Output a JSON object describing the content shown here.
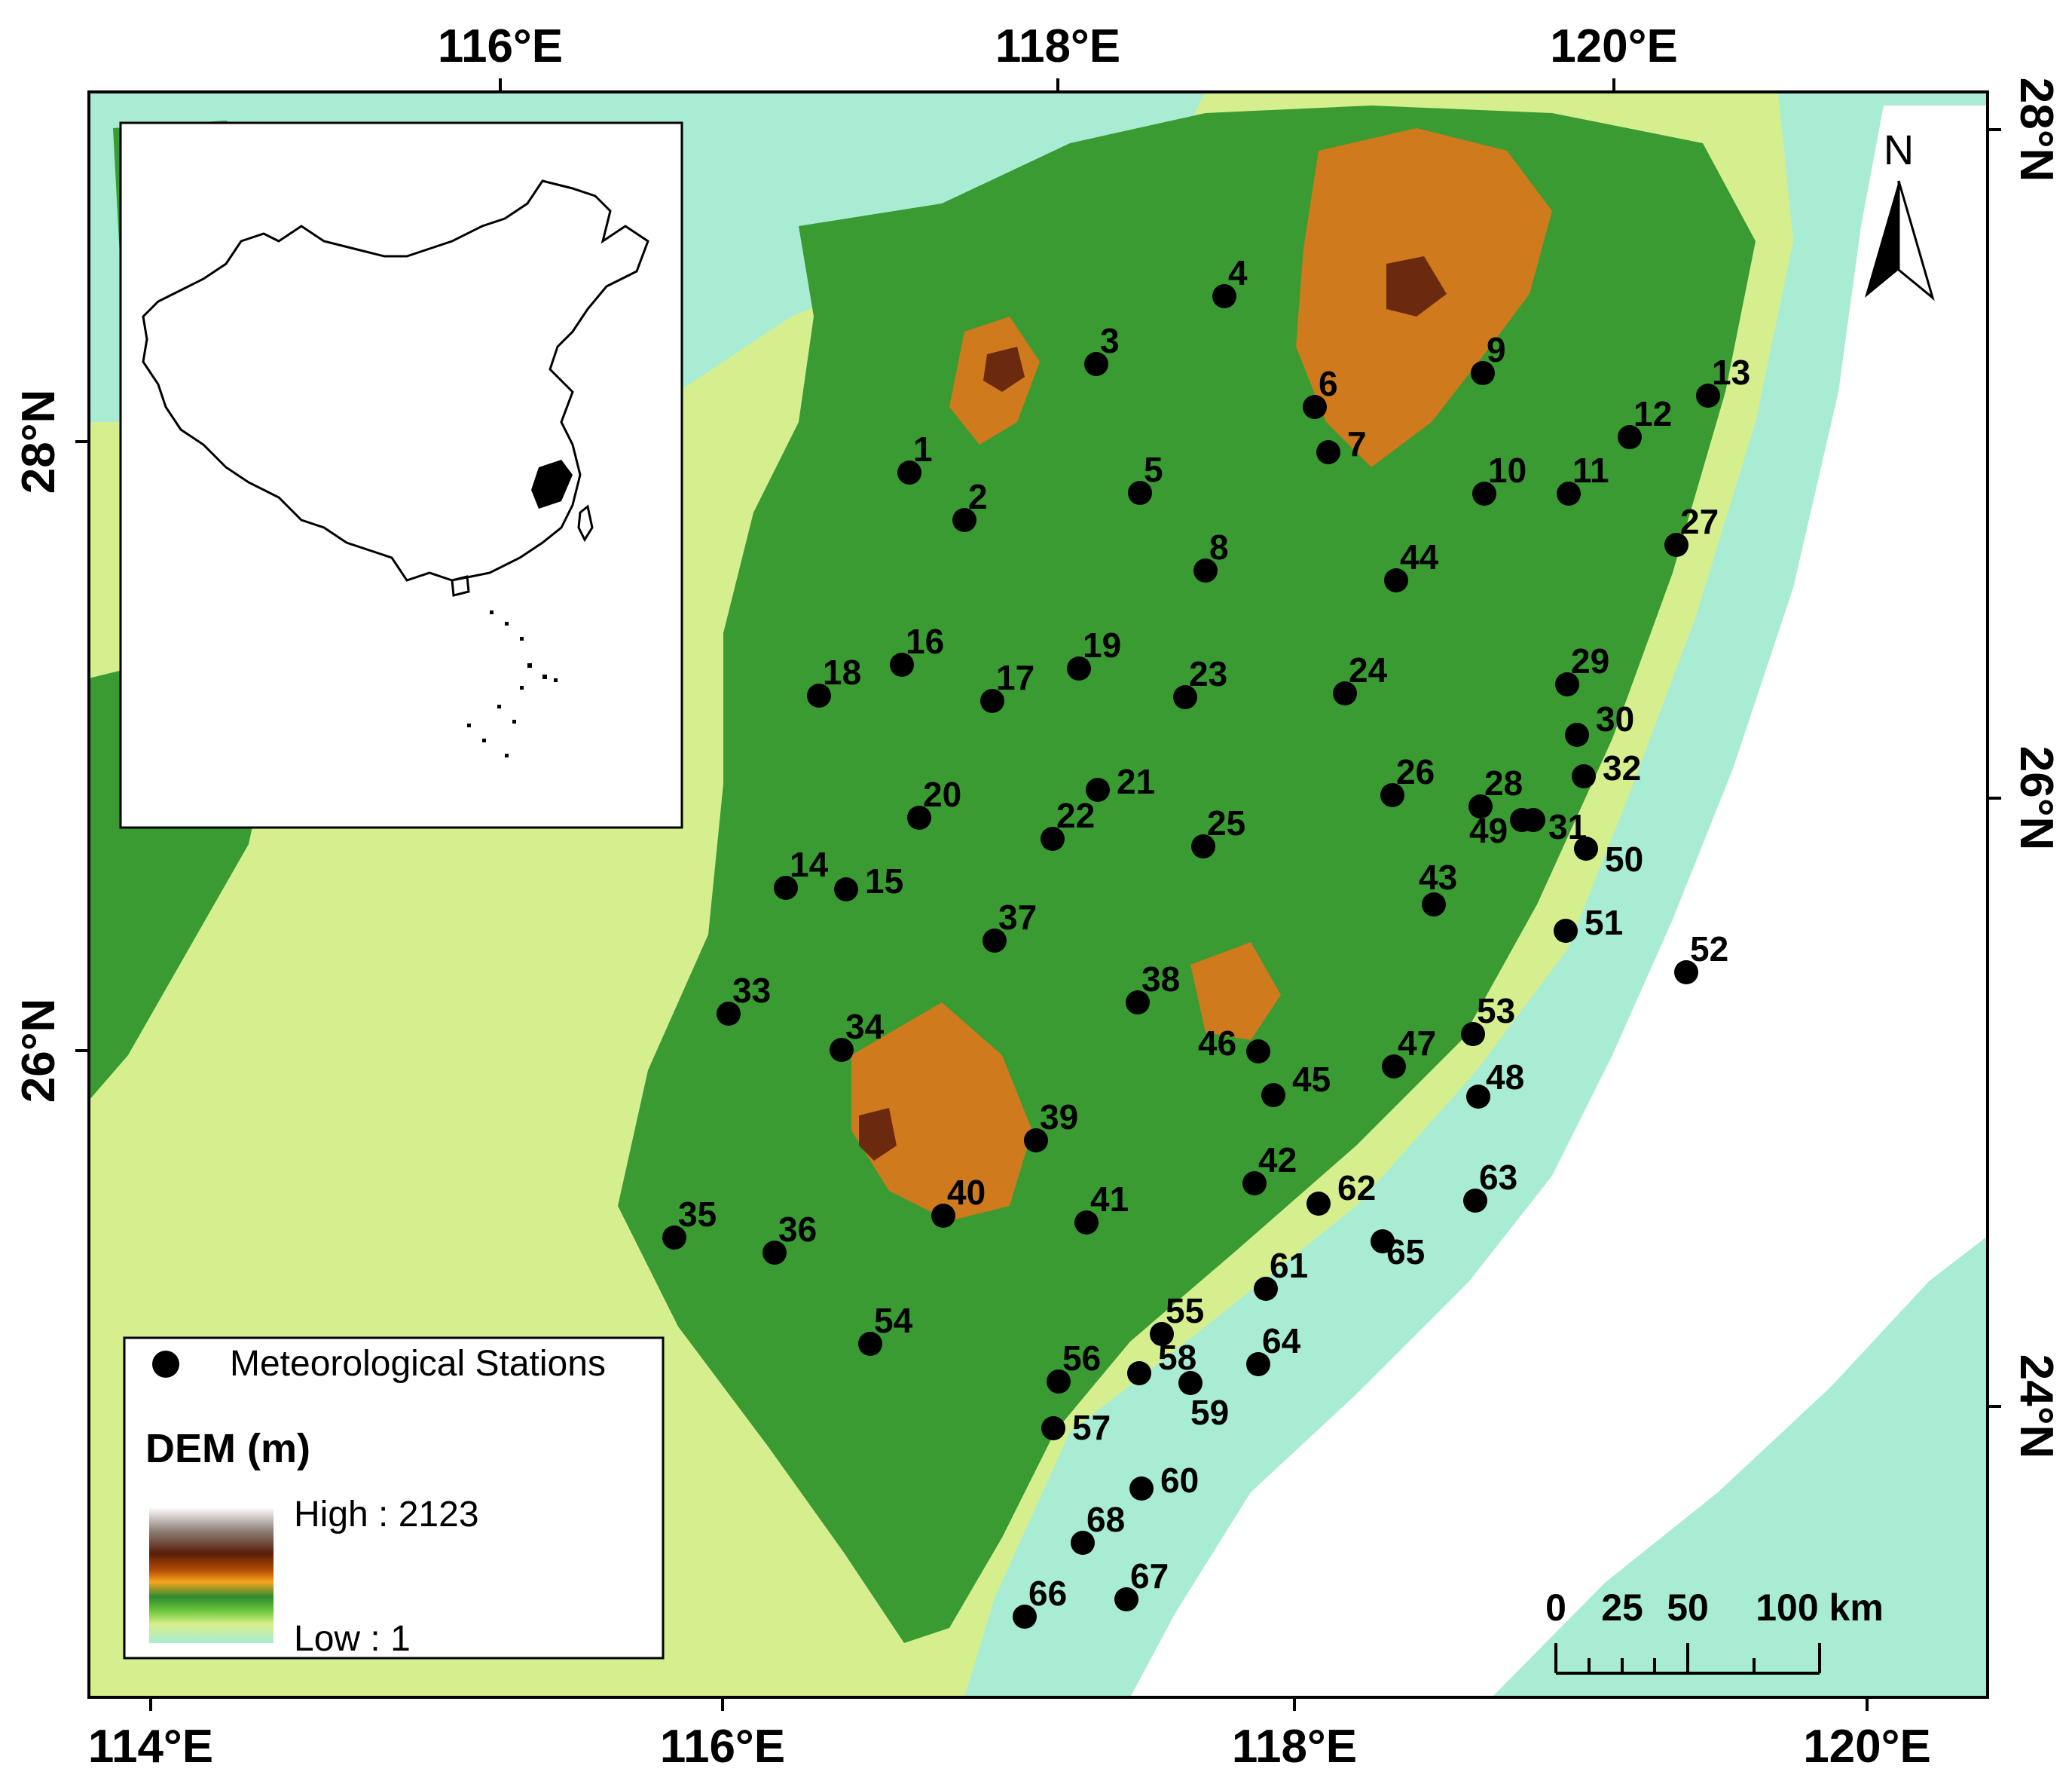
{
  "axes": {
    "top_ticks": [
      "116°E",
      "118°E",
      "120°E"
    ],
    "bottom_ticks": [
      "114°E",
      "116°E",
      "118°E",
      "120°E"
    ],
    "left_ticks": [
      "28°N",
      "26°N"
    ],
    "right_ticks": [
      "28°N",
      "26°N",
      "24°N"
    ]
  },
  "north_arrow": {
    "label": "N",
    "icon": "north-arrow-icon"
  },
  "legend": {
    "stations_label": "Meteorological Stations",
    "dem_title": "DEM (m)",
    "high_label": "High : 2123",
    "low_label": "Low : 1",
    "ramp_colors": [
      "#ffffff",
      "#8a7a72",
      "#5a1d08",
      "#b04a06",
      "#f6a41c",
      "#2f8a2f",
      "#6ac53a",
      "#d9ef8c",
      "#a8ecd2"
    ]
  },
  "scale_bar": {
    "labels": [
      "0",
      "25",
      "50",
      "100 km"
    ]
  },
  "colors": {
    "lowland": "#d6ef8e",
    "coastal": "#a9ecd4",
    "forest": "#3a9b32",
    "highland": "#cf7a1c",
    "peak": "#6b2a10",
    "station": "#000000"
  },
  "stations": [
    {
      "id": "1"
    },
    {
      "id": "2"
    },
    {
      "id": "3"
    },
    {
      "id": "4"
    },
    {
      "id": "5"
    },
    {
      "id": "6"
    },
    {
      "id": "7"
    },
    {
      "id": "8"
    },
    {
      "id": "9"
    },
    {
      "id": "10"
    },
    {
      "id": "11"
    },
    {
      "id": "12"
    },
    {
      "id": "13"
    },
    {
      "id": "14"
    },
    {
      "id": "15"
    },
    {
      "id": "16"
    },
    {
      "id": "17"
    },
    {
      "id": "18"
    },
    {
      "id": "19"
    },
    {
      "id": "20"
    },
    {
      "id": "21"
    },
    {
      "id": "22"
    },
    {
      "id": "23"
    },
    {
      "id": "24"
    },
    {
      "id": "25"
    },
    {
      "id": "26"
    },
    {
      "id": "27"
    },
    {
      "id": "28"
    },
    {
      "id": "29"
    },
    {
      "id": "30"
    },
    {
      "id": "31"
    },
    {
      "id": "32"
    },
    {
      "id": "33"
    },
    {
      "id": "34"
    },
    {
      "id": "35"
    },
    {
      "id": "36"
    },
    {
      "id": "37"
    },
    {
      "id": "38"
    },
    {
      "id": "39"
    },
    {
      "id": "40"
    },
    {
      "id": "41"
    },
    {
      "id": "42"
    },
    {
      "id": "43"
    },
    {
      "id": "44"
    },
    {
      "id": "45"
    },
    {
      "id": "46"
    },
    {
      "id": "47"
    },
    {
      "id": "48"
    },
    {
      "id": "49"
    },
    {
      "id": "50"
    },
    {
      "id": "51"
    },
    {
      "id": "52"
    },
    {
      "id": "53"
    },
    {
      "id": "54"
    },
    {
      "id": "55"
    },
    {
      "id": "56"
    },
    {
      "id": "57"
    },
    {
      "id": "58"
    },
    {
      "id": "59"
    },
    {
      "id": "60"
    },
    {
      "id": "61"
    },
    {
      "id": "62"
    },
    {
      "id": "63"
    },
    {
      "id": "64"
    },
    {
      "id": "65"
    },
    {
      "id": "66"
    },
    {
      "id": "67"
    },
    {
      "id": "68"
    }
  ]
}
